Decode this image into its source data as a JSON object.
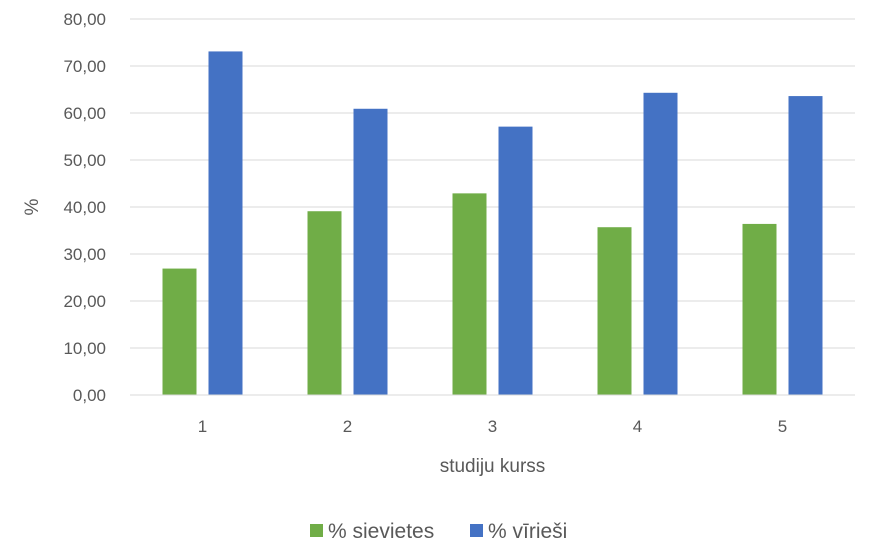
{
  "chart_data": {
    "type": "bar",
    "title": "",
    "xlabel": "studiju kurss",
    "ylabel": "%",
    "categories": [
      "1",
      "2",
      "3",
      "4",
      "5"
    ],
    "series": [
      {
        "name": "% sievietes",
        "color": "#70ad47",
        "values": [
          26.9,
          39.1,
          42.9,
          35.7,
          36.4
        ]
      },
      {
        "name": "% vīrieši",
        "color": "#4472c4",
        "values": [
          73.1,
          60.9,
          57.1,
          64.3,
          63.6
        ]
      }
    ],
    "ylim": [
      0,
      80
    ],
    "yticks": [
      "0,00",
      "10,00",
      "20,00",
      "30,00",
      "40,00",
      "50,00",
      "60,00",
      "70,00",
      "80,00"
    ],
    "grid": true,
    "legend_position": "bottom"
  }
}
